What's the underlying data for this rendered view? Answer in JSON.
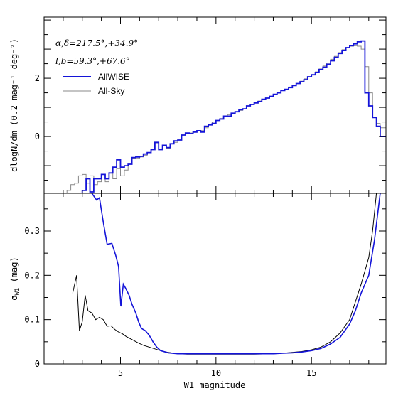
{
  "colors": {
    "allwise": "#1414d8",
    "allsky": "#888888",
    "black": "#000000"
  },
  "chart_data": [
    {
      "type": "line",
      "panel": "top",
      "step": true,
      "xlabel": "",
      "ylabel": "dlogN/dm (0.2 mag⁻¹ deg⁻²)",
      "xlim": [
        1,
        18.9
      ],
      "ylim": [
        -1.95,
        4.1
      ],
      "yticks": [
        {
          "v": 2,
          "label": "2"
        },
        {
          "v": 0,
          "label": "0"
        }
      ],
      "annotations": [
        "α,δ=217.5°,+34.9°",
        "l,b=59.3°,+67.6°"
      ],
      "legend_position": "upper-left",
      "series": [
        {
          "name": "AllWISE",
          "color": "#1414d8",
          "x": [
            2.7,
            2.9,
            3.1,
            3.3,
            3.5,
            3.7,
            3.9,
            4.1,
            4.3,
            4.5,
            4.7,
            4.9,
            5.1,
            5.3,
            5.5,
            5.7,
            5.9,
            6.1,
            6.3,
            6.5,
            6.7,
            6.9,
            7.1,
            7.3,
            7.5,
            7.7,
            7.9,
            8.1,
            8.3,
            8.5,
            8.7,
            8.9,
            9.1,
            9.3,
            9.5,
            9.7,
            9.9,
            10.1,
            10.3,
            10.5,
            10.7,
            10.9,
            11.1,
            11.3,
            11.5,
            11.7,
            11.9,
            12.1,
            12.3,
            12.5,
            12.7,
            12.9,
            13.1,
            13.3,
            13.5,
            13.7,
            13.9,
            14.1,
            14.3,
            14.5,
            14.7,
            14.9,
            15.1,
            15.3,
            15.5,
            15.7,
            15.9,
            16.1,
            16.3,
            16.5,
            16.7,
            16.9,
            17.1,
            17.3,
            17.5,
            17.7,
            17.9,
            18.1,
            18.3,
            18.5,
            18.7,
            18.9
          ],
          "y": [
            -1.95,
            -1.95,
            -1.85,
            -1.45,
            -1.9,
            -1.45,
            -1.45,
            -1.3,
            -1.45,
            -1.25,
            -1.05,
            -0.8,
            -1.05,
            -1.0,
            -0.95,
            -0.72,
            -0.7,
            -0.68,
            -0.6,
            -0.55,
            -0.45,
            -0.2,
            -0.45,
            -0.3,
            -0.38,
            -0.25,
            -0.15,
            -0.12,
            0.05,
            0.12,
            0.1,
            0.15,
            0.2,
            0.15,
            0.35,
            0.4,
            0.45,
            0.55,
            0.6,
            0.7,
            0.7,
            0.8,
            0.85,
            0.92,
            0.95,
            1.05,
            1.1,
            1.15,
            1.2,
            1.28,
            1.32,
            1.38,
            1.45,
            1.5,
            1.58,
            1.62,
            1.68,
            1.75,
            1.82,
            1.88,
            1.95,
            2.05,
            2.12,
            2.2,
            2.3,
            2.38,
            2.48,
            2.6,
            2.72,
            2.85,
            2.95,
            3.05,
            3.12,
            3.18,
            3.25,
            3.28,
            1.5,
            1.05,
            0.65,
            0.35,
            0.0,
            0.0
          ]
        },
        {
          "name": "All-Sky",
          "color": "#888888",
          "x": [
            1.9,
            2.1,
            2.3,
            2.5,
            2.7,
            2.9,
            3.1,
            3.3,
            3.5,
            3.7,
            3.9,
            4.1,
            4.3,
            4.5,
            4.7,
            4.9,
            5.1,
            5.3,
            5.5,
            5.7,
            5.9,
            6.1,
            6.3,
            6.5,
            6.7,
            6.9,
            7.1,
            7.3,
            7.5,
            7.7,
            7.9,
            8.1,
            8.3,
            8.5,
            8.7,
            8.9,
            9.1,
            9.3,
            9.5,
            9.7,
            9.9,
            10.1,
            10.3,
            10.5,
            10.7,
            10.9,
            11.1,
            11.3,
            11.5,
            11.7,
            11.9,
            12.1,
            12.3,
            12.5,
            12.7,
            12.9,
            13.1,
            13.3,
            13.5,
            13.7,
            13.9,
            14.1,
            14.3,
            14.5,
            14.7,
            14.9,
            15.1,
            15.3,
            15.5,
            15.7,
            15.9,
            16.1,
            16.3,
            16.5,
            16.7,
            16.9,
            17.1,
            17.3,
            17.5,
            17.7,
            17.9,
            18.1,
            18.3,
            18.5,
            18.7,
            18.9
          ],
          "y": [
            -1.95,
            -1.95,
            -1.85,
            -1.65,
            -1.6,
            -1.35,
            -1.3,
            -1.6,
            -1.35,
            -1.65,
            -1.55,
            -1.3,
            -1.55,
            -1.25,
            -1.45,
            -1.1,
            -1.35,
            -1.15,
            -0.95,
            -0.75,
            -0.75,
            -0.7,
            -0.65,
            -0.55,
            -0.45,
            -0.25,
            -0.45,
            -0.3,
            -0.4,
            -0.25,
            -0.2,
            -0.12,
            0.05,
            0.12,
            0.12,
            0.15,
            0.2,
            0.2,
            0.3,
            0.4,
            0.5,
            0.55,
            0.62,
            0.68,
            0.75,
            0.8,
            0.85,
            0.9,
            0.95,
            1.05,
            1.1,
            1.18,
            1.22,
            1.28,
            1.32,
            1.38,
            1.45,
            1.5,
            1.58,
            1.62,
            1.7,
            1.75,
            1.82,
            1.9,
            1.98,
            2.05,
            2.12,
            2.22,
            2.32,
            2.42,
            2.52,
            2.65,
            2.75,
            2.88,
            2.98,
            3.05,
            3.1,
            3.12,
            3.1,
            3.0,
            2.4,
            1.5,
            0.65,
            0.45,
            0.3,
            0.3
          ]
        }
      ]
    },
    {
      "type": "line",
      "panel": "bottom",
      "xlabel": "W1 magnitude",
      "ylabel": "σ_W1 (mag)",
      "xlim": [
        1,
        18.9
      ],
      "ylim": [
        0,
        0.385
      ],
      "xticks": [
        {
          "v": 5,
          "label": "5"
        },
        {
          "v": 10,
          "label": "10"
        },
        {
          "v": 15,
          "label": "15"
        }
      ],
      "yticks": [
        {
          "v": 0,
          "label": "0"
        },
        {
          "v": 0.1,
          "label": "0.1"
        },
        {
          "v": 0.2,
          "label": "0.2"
        },
        {
          "v": 0.3,
          "label": "0.3"
        }
      ],
      "series": [
        {
          "name": "AllWISE",
          "color": "#1414d8",
          "x": [
            3.5,
            3.75,
            3.9,
            4.1,
            4.3,
            4.55,
            4.75,
            4.9,
            5.02,
            5.15,
            5.28,
            5.45,
            5.6,
            5.8,
            5.95,
            6.1,
            6.3,
            6.5,
            6.7,
            6.9,
            7.1,
            7.5,
            8.0,
            8.5,
            9,
            10,
            11,
            12,
            13,
            13.5,
            14,
            14.5,
            15,
            15.5,
            16,
            16.5,
            17,
            17.3,
            17.6,
            18.0,
            18.3,
            18.6
          ],
          "y": [
            0.385,
            0.37,
            0.375,
            0.32,
            0.27,
            0.272,
            0.245,
            0.22,
            0.13,
            0.18,
            0.17,
            0.155,
            0.135,
            0.115,
            0.095,
            0.08,
            0.075,
            0.065,
            0.05,
            0.038,
            0.03,
            0.025,
            0.023,
            0.023,
            0.023,
            0.023,
            0.023,
            0.023,
            0.023,
            0.024,
            0.025,
            0.027,
            0.03,
            0.035,
            0.045,
            0.06,
            0.09,
            0.12,
            0.16,
            0.2,
            0.28,
            0.385
          ]
        },
        {
          "name": "All-Sky",
          "color": "#000000",
          "x": [
            2.5,
            2.7,
            2.85,
            3.0,
            3.15,
            3.3,
            3.5,
            3.7,
            3.9,
            4.1,
            4.3,
            4.5,
            4.7,
            4.9,
            5.1,
            5.3,
            5.6,
            5.9,
            6.2,
            6.5,
            6.8,
            7.1,
            7.5,
            8.0,
            8.5,
            9,
            10,
            11,
            12,
            13,
            13.5,
            14,
            14.5,
            15,
            15.5,
            16,
            16.5,
            17,
            17.3,
            17.6,
            18.0,
            18.2,
            18.4
          ],
          "y": [
            0.16,
            0.2,
            0.075,
            0.095,
            0.155,
            0.12,
            0.115,
            0.1,
            0.105,
            0.1,
            0.085,
            0.086,
            0.078,
            0.072,
            0.068,
            0.062,
            0.055,
            0.048,
            0.042,
            0.038,
            0.034,
            0.03,
            0.026,
            0.023,
            0.022,
            0.022,
            0.022,
            0.022,
            0.022,
            0.023,
            0.024,
            0.026,
            0.028,
            0.032,
            0.038,
            0.05,
            0.07,
            0.1,
            0.14,
            0.18,
            0.24,
            0.3,
            0.385
          ]
        }
      ]
    }
  ]
}
